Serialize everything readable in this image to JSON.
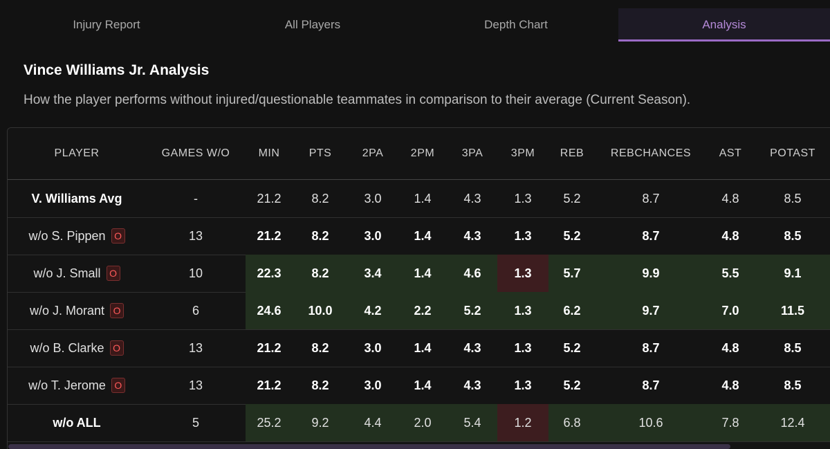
{
  "tabs": [
    {
      "label": "Injury Report",
      "active": false
    },
    {
      "label": "All Players",
      "active": false
    },
    {
      "label": "Depth Chart",
      "active": false
    },
    {
      "label": "Analysis",
      "active": true
    }
  ],
  "title": "Vince Williams Jr. Analysis",
  "subtitle": "How the player performs without injured/questionable teammates in comparison to their average (Current Season).",
  "colors": {
    "accent": "#9b6bc6",
    "positive": "#22301f",
    "negative": "#3d1d1f",
    "badge": "#ff5a5a"
  },
  "table": {
    "headers": [
      "PLAYER",
      "GAMES W/O",
      "MIN",
      "PTS",
      "2PA",
      "2PM",
      "3PA",
      "3PM",
      "REB",
      "REBCHANCES",
      "AST",
      "POTAST"
    ],
    "rows": [
      {
        "player": "V. Williams Avg",
        "badge": "",
        "bold_name": true,
        "bold_values": false,
        "values": [
          "-",
          "21.2",
          "8.2",
          "3.0",
          "1.4",
          "4.3",
          "1.3",
          "5.2",
          "8.7",
          "4.8",
          "8.5"
        ],
        "shade": [
          "",
          "",
          "",
          "",
          "",
          "",
          "",
          "",
          "",
          "",
          ""
        ]
      },
      {
        "player": "w/o S. Pippen",
        "badge": "O",
        "bold_name": false,
        "bold_values": true,
        "values": [
          "13",
          "21.2",
          "8.2",
          "3.0",
          "1.4",
          "4.3",
          "1.3",
          "5.2",
          "8.7",
          "4.8",
          "8.5"
        ],
        "shade": [
          "",
          "",
          "",
          "",
          "",
          "",
          "",
          "",
          "",
          "",
          ""
        ]
      },
      {
        "player": "w/o J. Small",
        "badge": "O",
        "bold_name": false,
        "bold_values": true,
        "values": [
          "10",
          "22.3",
          "8.2",
          "3.4",
          "1.4",
          "4.6",
          "1.3",
          "5.7",
          "9.9",
          "5.5",
          "9.1"
        ],
        "shade": [
          "",
          "green",
          "green",
          "green",
          "green",
          "green",
          "red",
          "green",
          "green",
          "green",
          "green"
        ]
      },
      {
        "player": "w/o J. Morant",
        "badge": "O",
        "bold_name": false,
        "bold_values": true,
        "values": [
          "6",
          "24.6",
          "10.0",
          "4.2",
          "2.2",
          "5.2",
          "1.3",
          "6.2",
          "9.7",
          "7.0",
          "11.5"
        ],
        "shade": [
          "",
          "green",
          "green",
          "green",
          "green",
          "green",
          "green",
          "green",
          "green",
          "green",
          "green"
        ]
      },
      {
        "player": "w/o B. Clarke",
        "badge": "O",
        "bold_name": false,
        "bold_values": true,
        "values": [
          "13",
          "21.2",
          "8.2",
          "3.0",
          "1.4",
          "4.3",
          "1.3",
          "5.2",
          "8.7",
          "4.8",
          "8.5"
        ],
        "shade": [
          "",
          "",
          "",
          "",
          "",
          "",
          "",
          "",
          "",
          "",
          ""
        ]
      },
      {
        "player": "w/o T. Jerome",
        "badge": "O",
        "bold_name": false,
        "bold_values": true,
        "values": [
          "13",
          "21.2",
          "8.2",
          "3.0",
          "1.4",
          "4.3",
          "1.3",
          "5.2",
          "8.7",
          "4.8",
          "8.5"
        ],
        "shade": [
          "",
          "",
          "",
          "",
          "",
          "",
          "",
          "",
          "",
          "",
          ""
        ]
      },
      {
        "player": "w/o ALL",
        "badge": "",
        "bold_name": true,
        "bold_values": false,
        "values": [
          "5",
          "25.2",
          "9.2",
          "4.4",
          "2.0",
          "5.4",
          "1.2",
          "6.8",
          "10.6",
          "7.8",
          "12.4"
        ],
        "shade": [
          "",
          "green",
          "green",
          "green",
          "green",
          "green",
          "red",
          "green",
          "green",
          "green",
          "green"
        ]
      }
    ]
  }
}
